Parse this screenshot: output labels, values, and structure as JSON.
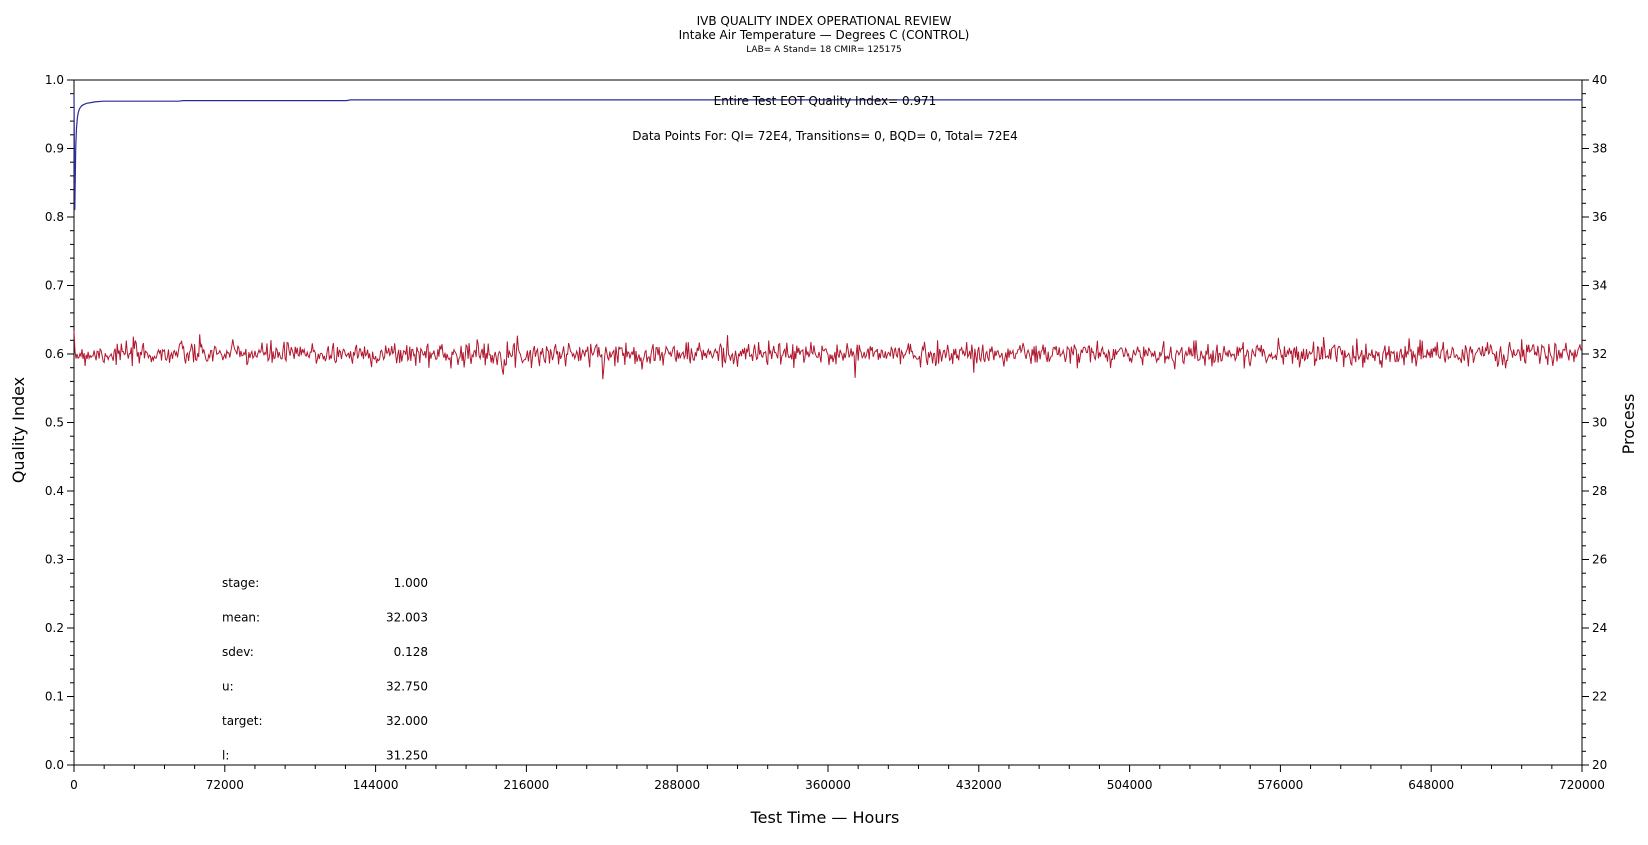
{
  "chart_data": {
    "type": "line",
    "title": "IVB QUALITY INDEX OPERATIONAL REVIEW",
    "subtitle": "Intake Air Temperature — Degrees C (CONTROL)",
    "subtitle2": "LAB= A Stand= 18 CMIR= 125175",
    "xlabel": "Test Time — Hours",
    "ylabel": "Quality Index",
    "y2label": "Process",
    "xlim": [
      0,
      720000
    ],
    "ylim": [
      0.0,
      1.0
    ],
    "y2lim": [
      20,
      40
    ],
    "x_ticks": [
      "0",
      "72000",
      "144000",
      "216000",
      "288000",
      "360000",
      "432000",
      "504000",
      "576000",
      "648000",
      "720000"
    ],
    "y_ticks": [
      "0.0",
      "0.1",
      "0.2",
      "0.3",
      "0.4",
      "0.5",
      "0.6",
      "0.7",
      "0.8",
      "0.9",
      "1.0"
    ],
    "y2_ticks": [
      "20",
      "22",
      "24",
      "26",
      "28",
      "30",
      "32",
      "34",
      "36",
      "38",
      "40"
    ],
    "annotations": {
      "qi_text": "Entire Test EOT Quality Index=   0.971",
      "points_text": "Data Points For: QI=  72E4, Transitions=     0, BQD=     0, Total=  72E4"
    },
    "series": [
      {
        "name": "Quality Index",
        "axis": "left",
        "color": "#2b2b9a",
        "x": [
          0,
          400,
          800,
          1200,
          1600,
          2000,
          2400,
          3000,
          3600,
          4500,
          6000,
          8000,
          10000,
          14000,
          20000,
          30000,
          50000,
          52000,
          100000,
          130000,
          132000,
          200000,
          400000,
          600000,
          720000
        ],
        "values": [
          0.98,
          0.81,
          0.9,
          0.93,
          0.945,
          0.952,
          0.956,
          0.96,
          0.962,
          0.964,
          0.966,
          0.967,
          0.968,
          0.969,
          0.969,
          0.969,
          0.969,
          0.97,
          0.97,
          0.97,
          0.971,
          0.971,
          0.971,
          0.971,
          0.971
        ]
      },
      {
        "name": "Process",
        "axis": "right",
        "color": "#b0172e",
        "mean": 32.003,
        "sdev": 0.128,
        "x": [
          0,
          720000
        ],
        "values": [
          32.0,
          32.0
        ]
      }
    ],
    "stats": [
      {
        "label": "stage:",
        "value": "1.000"
      },
      {
        "label": "mean:",
        "value": "32.003"
      },
      {
        "label": "sdev:",
        "value": "0.128"
      },
      {
        "label": "u:",
        "value": "32.750"
      },
      {
        "label": "target:",
        "value": "32.000"
      },
      {
        "label": "l:",
        "value": "31.250"
      }
    ]
  }
}
